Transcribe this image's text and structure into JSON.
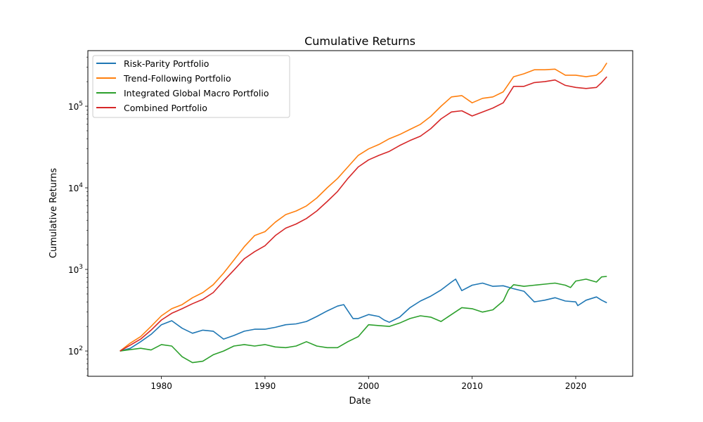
{
  "chart_data": {
    "type": "line",
    "title": "Cumulative Returns",
    "xlabel": "Date",
    "ylabel": "Cumulative Returns",
    "x_scale": "time",
    "y_scale": "log",
    "xlim": [
      1972.9,
      2025.5
    ],
    "ylim": [
      49,
      480000
    ],
    "grid": false,
    "legend_position": "upper-left",
    "x_ticks": [
      {
        "value": 1980,
        "label": "1980"
      },
      {
        "value": 1990,
        "label": "1990"
      },
      {
        "value": 2000,
        "label": "2000"
      },
      {
        "value": 2010,
        "label": "2010"
      },
      {
        "value": 2020,
        "label": "2020"
      }
    ],
    "y_ticks": [
      {
        "value": 100,
        "base": "10",
        "exp": "2"
      },
      {
        "value": 1000,
        "base": "10",
        "exp": "3"
      },
      {
        "value": 10000,
        "base": "10",
        "exp": "4"
      },
      {
        "value": 100000,
        "base": "10",
        "exp": "5"
      }
    ],
    "series": [
      {
        "name": "Risk-Parity Portfolio",
        "color": "#1f77b4",
        "x": [
          1976.0,
          1977.0,
          1978.0,
          1979.0,
          1980.0,
          1981.0,
          1982.0,
          1983.0,
          1984.0,
          1985.0,
          1986.0,
          1987.0,
          1988.0,
          1989.0,
          1990.0,
          1991.0,
          1992.0,
          1993.0,
          1994.0,
          1995.0,
          1996.0,
          1997.0,
          1997.6,
          1998.5,
          1999.0,
          2000.0,
          2001.0,
          2001.5,
          2002.0,
          2003.0,
          2004.0,
          2005.0,
          2006.0,
          2007.0,
          2008.0,
          2008.4,
          2009.0,
          2010.0,
          2011.0,
          2012.0,
          2013.0,
          2014.0,
          2015.0,
          2016.0,
          2017.0,
          2018.0,
          2019.0,
          2020.0,
          2020.2,
          2021.0,
          2022.0,
          2022.5,
          2023.0
        ],
        "y": [
          100,
          108,
          130,
          160,
          210,
          235,
          190,
          165,
          180,
          175,
          140,
          155,
          175,
          185,
          185,
          195,
          210,
          215,
          230,
          265,
          310,
          355,
          370,
          250,
          250,
          280,
          265,
          240,
          225,
          260,
          340,
          410,
          470,
          560,
          700,
          760,
          550,
          640,
          680,
          620,
          630,
          580,
          540,
          400,
          420,
          450,
          410,
          400,
          360,
          420,
          460,
          420,
          390
        ]
      },
      {
        "name": "Trend-Following Portfolio",
        "color": "#ff7f0e",
        "x": [
          1976.0,
          1977.0,
          1978.0,
          1979.0,
          1980.0,
          1981.0,
          1982.0,
          1983.0,
          1984.0,
          1985.0,
          1986.0,
          1987.0,
          1988.0,
          1989.0,
          1990.0,
          1991.0,
          1992.0,
          1993.0,
          1994.0,
          1995.0,
          1996.0,
          1997.0,
          1998.0,
          1999.0,
          2000.0,
          2001.0,
          2002.0,
          2003.0,
          2004.0,
          2005.0,
          2006.0,
          2007.0,
          2008.0,
          2009.0,
          2010.0,
          2011.0,
          2012.0,
          2013.0,
          2014.0,
          2015.0,
          2016.0,
          2017.0,
          2018.0,
          2019.0,
          2020.0,
          2021.0,
          2022.0,
          2022.5,
          2023.0
        ],
        "y": [
          100,
          125,
          150,
          200,
          270,
          330,
          370,
          450,
          520,
          650,
          900,
          1300,
          1900,
          2600,
          2900,
          3800,
          4700,
          5200,
          6000,
          7500,
          10000,
          13000,
          18000,
          25000,
          30000,
          34000,
          40000,
          45000,
          52000,
          60000,
          75000,
          100000,
          130000,
          135000,
          110000,
          125000,
          130000,
          150000,
          230000,
          250000,
          280000,
          280000,
          285000,
          240000,
          240000,
          230000,
          240000,
          270000,
          340000
        ]
      },
      {
        "name": "Integrated Global Macro Portfolio",
        "color": "#2ca02c",
        "x": [
          1976.0,
          1977.0,
          1978.0,
          1979.0,
          1980.0,
          1981.0,
          1982.0,
          1983.0,
          1984.0,
          1985.0,
          1986.0,
          1987.0,
          1988.0,
          1989.0,
          1990.0,
          1991.0,
          1992.0,
          1993.0,
          1994.0,
          1995.0,
          1996.0,
          1997.0,
          1998.0,
          1999.0,
          2000.0,
          2001.0,
          2002.0,
          2003.0,
          2004.0,
          2005.0,
          2006.0,
          2007.0,
          2008.0,
          2009.0,
          2010.0,
          2011.0,
          2012.0,
          2013.0,
          2013.5,
          2014.0,
          2015.0,
          2016.0,
          2017.0,
          2018.0,
          2019.0,
          2019.5,
          2020.0,
          2021.0,
          2022.0,
          2022.5,
          2023.0
        ],
        "y": [
          100,
          104,
          108,
          103,
          120,
          115,
          85,
          72,
          75,
          90,
          100,
          115,
          120,
          115,
          120,
          112,
          110,
          115,
          130,
          115,
          110,
          110,
          130,
          150,
          210,
          205,
          200,
          220,
          250,
          270,
          260,
          230,
          280,
          340,
          330,
          300,
          320,
          410,
          560,
          650,
          620,
          640,
          660,
          680,
          640,
          600,
          720,
          760,
          700,
          810,
          820
        ]
      },
      {
        "name": "Combined Portfolio",
        "color": "#d62728",
        "x": [
          1976.0,
          1977.0,
          1978.0,
          1979.0,
          1980.0,
          1981.0,
          1982.0,
          1983.0,
          1984.0,
          1985.0,
          1986.0,
          1987.0,
          1988.0,
          1989.0,
          1990.0,
          1991.0,
          1992.0,
          1993.0,
          1994.0,
          1995.0,
          1996.0,
          1997.0,
          1998.0,
          1999.0,
          2000.0,
          2001.0,
          2002.0,
          2003.0,
          2004.0,
          2005.0,
          2006.0,
          2007.0,
          2008.0,
          2009.0,
          2010.0,
          2011.0,
          2012.0,
          2013.0,
          2014.0,
          2015.0,
          2016.0,
          2017.0,
          2018.0,
          2019.0,
          2020.0,
          2021.0,
          2022.0,
          2022.5,
          2023.0
        ],
        "y": [
          100,
          118,
          140,
          180,
          240,
          290,
          330,
          380,
          430,
          520,
          720,
          980,
          1350,
          1650,
          1950,
          2600,
          3200,
          3600,
          4200,
          5200,
          6800,
          9000,
          13000,
          18000,
          22000,
          25000,
          28000,
          33000,
          38000,
          43000,
          53000,
          70000,
          85000,
          88000,
          76000,
          85000,
          95000,
          110000,
          175000,
          175000,
          195000,
          200000,
          210000,
          180000,
          170000,
          165000,
          170000,
          195000,
          230000
        ]
      }
    ]
  }
}
